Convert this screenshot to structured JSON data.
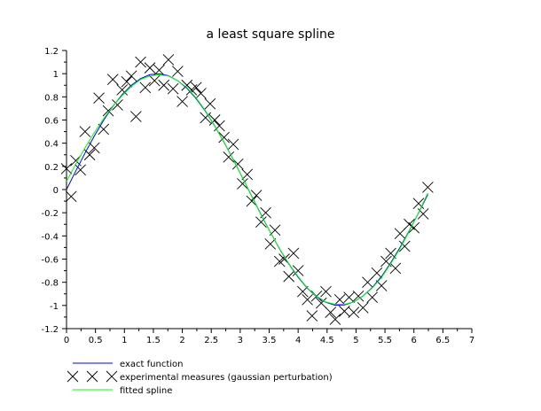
{
  "chart_data": {
    "type": "line",
    "title": "a least square spline",
    "xlabel": "",
    "ylabel": "",
    "xlim": [
      0,
      7
    ],
    "ylim": [
      -1.2,
      1.2
    ],
    "xticks": [
      "0",
      "0.5",
      "1",
      "1.5",
      "2",
      "2.5",
      "3",
      "3.5",
      "4",
      "4.5",
      "5",
      "5.5",
      "6",
      "6.5",
      "7"
    ],
    "yticks": [
      "-1.2",
      "-1",
      "-0.8",
      "-0.6",
      "-0.4",
      "-0.2",
      "0",
      "0.2",
      "0.4",
      "0.6",
      "0.8",
      "1",
      "1.2"
    ],
    "grid": false,
    "legend_placement": "bottom-left, below plot",
    "series": [
      {
        "name": "exact function",
        "style": "line",
        "color": "#0000ff",
        "x": [
          0,
          0.16,
          0.32,
          0.48,
          0.64,
          0.8,
          0.96,
          1.12,
          1.28,
          1.44,
          1.6,
          1.76,
          1.92,
          2.08,
          2.24,
          2.4,
          2.56,
          2.72,
          2.88,
          3.04,
          3.2,
          3.36,
          3.52,
          3.68,
          3.84,
          4.0,
          4.16,
          4.32,
          4.48,
          4.64,
          4.8,
          4.96,
          5.12,
          5.28,
          5.44,
          5.6,
          5.76,
          5.92,
          6.08,
          6.24
        ],
        "y": [
          0,
          0.159,
          0.315,
          0.462,
          0.597,
          0.717,
          0.819,
          0.9,
          0.958,
          0.991,
          1.0,
          0.982,
          0.94,
          0.873,
          0.784,
          0.675,
          0.549,
          0.408,
          0.259,
          0.101,
          -0.058,
          -0.217,
          -0.369,
          -0.513,
          -0.643,
          -0.757,
          -0.852,
          -0.925,
          -0.973,
          -0.998,
          -0.996,
          -0.97,
          -0.919,
          -0.845,
          -0.75,
          -0.631,
          -0.5,
          -0.355,
          -0.202,
          -0.043
        ]
      },
      {
        "name": "experimental measures (gaussian perturbation)",
        "style": "x-markers",
        "color": "#000000",
        "x": [
          0,
          0.08,
          0.16,
          0.24,
          0.32,
          0.4,
          0.48,
          0.56,
          0.64,
          0.72,
          0.8,
          0.88,
          0.96,
          1.04,
          1.12,
          1.2,
          1.28,
          1.36,
          1.44,
          1.52,
          1.6,
          1.68,
          1.76,
          1.84,
          1.92,
          2.0,
          2.08,
          2.16,
          2.24,
          2.32,
          2.4,
          2.48,
          2.56,
          2.64,
          2.72,
          2.8,
          2.88,
          2.96,
          3.04,
          3.12,
          3.2,
          3.28,
          3.36,
          3.44,
          3.52,
          3.6,
          3.68,
          3.76,
          3.84,
          3.92,
          4.0,
          4.08,
          4.16,
          4.24,
          4.32,
          4.4,
          4.48,
          4.56,
          4.64,
          4.72,
          4.8,
          4.88,
          4.96,
          5.04,
          5.12,
          5.2,
          5.28,
          5.36,
          5.44,
          5.52,
          5.6,
          5.68,
          5.76,
          5.84,
          5.92,
          6.0,
          6.08,
          6.16,
          6.24
        ],
        "y": [
          0.18,
          -0.06,
          0.25,
          0.17,
          0.5,
          0.3,
          0.36,
          0.79,
          0.52,
          0.68,
          0.95,
          0.73,
          0.86,
          0.93,
          0.98,
          0.63,
          1.1,
          0.88,
          1.05,
          0.94,
          1.03,
          0.9,
          1.12,
          0.87,
          1.02,
          0.76,
          0.9,
          0.86,
          0.88,
          0.83,
          0.62,
          0.74,
          0.6,
          0.55,
          0.45,
          0.28,
          0.39,
          0.22,
          0.05,
          0.13,
          -0.1,
          -0.05,
          -0.28,
          -0.2,
          -0.47,
          -0.35,
          -0.62,
          -0.6,
          -0.75,
          -0.55,
          -0.7,
          -0.88,
          -0.95,
          -1.09,
          -0.92,
          -0.98,
          -0.88,
          -1.06,
          -1.12,
          -0.95,
          -1.05,
          -0.93,
          -1.06,
          -0.92,
          -1.02,
          -0.8,
          -0.93,
          -0.72,
          -0.83,
          -0.62,
          -0.55,
          -0.68,
          -0.38,
          -0.49,
          -0.3,
          -0.33,
          -0.12,
          -0.21,
          0.02
        ]
      },
      {
        "name": "fitted spline",
        "style": "line",
        "color": "#00ff00",
        "x": [
          0,
          0.16,
          0.32,
          0.48,
          0.64,
          0.8,
          0.96,
          1.12,
          1.28,
          1.44,
          1.6,
          1.76,
          1.92,
          2.08,
          2.24,
          2.4,
          2.56,
          2.72,
          2.88,
          3.04,
          3.2,
          3.36,
          3.52,
          3.68,
          3.84,
          4.0,
          4.16,
          4.32,
          4.48,
          4.64,
          4.8,
          4.96,
          5.12,
          5.28,
          5.44,
          5.6,
          5.76,
          5.92,
          6.08,
          6.24
        ],
        "y": [
          0.07,
          0.22,
          0.36,
          0.49,
          0.61,
          0.72,
          0.81,
          0.89,
          0.95,
          0.98,
          0.99,
          0.98,
          0.94,
          0.88,
          0.79,
          0.68,
          0.55,
          0.41,
          0.26,
          0.1,
          -0.06,
          -0.22,
          -0.37,
          -0.51,
          -0.64,
          -0.75,
          -0.85,
          -0.92,
          -0.97,
          -0.99,
          -0.99,
          -0.97,
          -0.92,
          -0.85,
          -0.76,
          -0.64,
          -0.51,
          -0.36,
          -0.2,
          -0.03
        ]
      }
    ]
  }
}
